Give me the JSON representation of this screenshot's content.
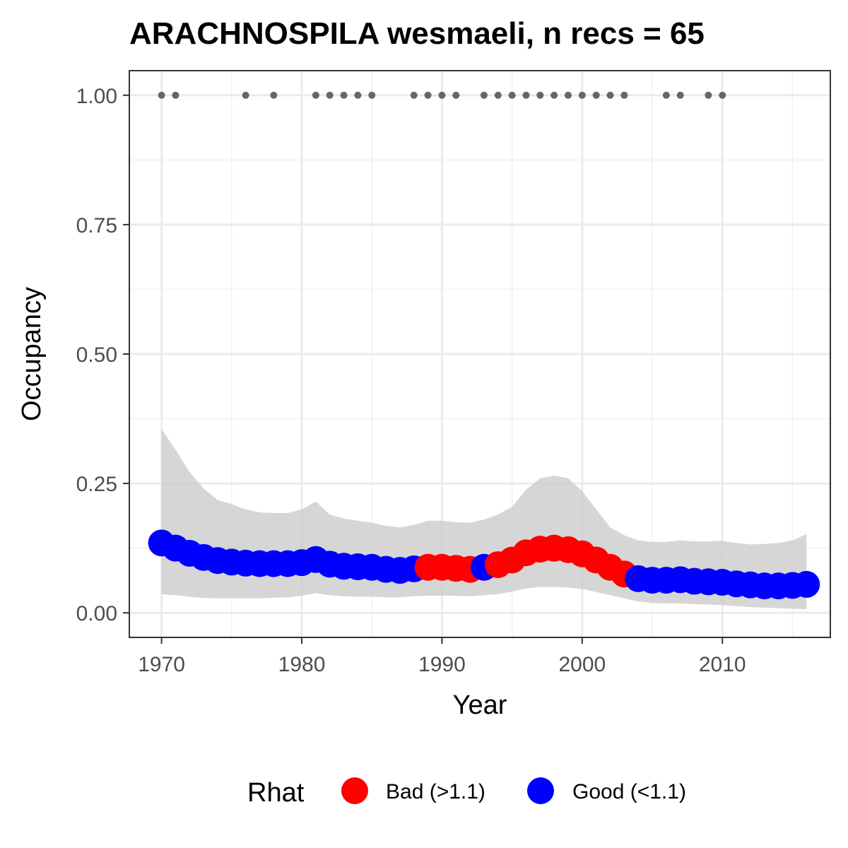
{
  "chart_data": {
    "type": "line",
    "title": "ARACHNOSPILA wesmaeli, n recs = 65",
    "xlabel": "Year",
    "ylabel": "Occupancy",
    "xlim": [
      1967.7,
      2017.7
    ],
    "ylim": [
      -0.0475,
      1.0475
    ],
    "x_ticks": [
      1970,
      1980,
      1990,
      2000,
      2010
    ],
    "x_tick_labels": [
      "1970",
      "1980",
      "1990",
      "2000",
      "2010"
    ],
    "y_ticks": [
      0,
      0.25,
      0.5,
      0.75,
      1.0
    ],
    "y_tick_labels": [
      "0.00",
      "0.25",
      "0.50",
      "0.75",
      "1.00"
    ],
    "grid": true,
    "legend": {
      "title": "Rhat",
      "position": "bottom",
      "entries": [
        {
          "label": "Bad (>1.1)",
          "color": "#ff0000"
        },
        {
          "label": "Good (<1.1)",
          "color": "#0000ff"
        }
      ]
    },
    "colors": {
      "bad": "#ff0000",
      "good": "#0000ff",
      "ribbon": "#cccccc",
      "records": "#666666"
    },
    "years": [
      1970,
      1971,
      1972,
      1973,
      1974,
      1975,
      1976,
      1977,
      1978,
      1979,
      1980,
      1981,
      1982,
      1983,
      1984,
      1985,
      1986,
      1987,
      1988,
      1989,
      1990,
      1991,
      1992,
      1993,
      1994,
      1995,
      1996,
      1997,
      1998,
      1999,
      2000,
      2001,
      2002,
      2003,
      2004,
      2005,
      2006,
      2007,
      2008,
      2009,
      2010,
      2011,
      2012,
      2013,
      2014,
      2015,
      2016
    ],
    "occupancy": [
      0.135,
      0.125,
      0.115,
      0.107,
      0.101,
      0.098,
      0.096,
      0.095,
      0.095,
      0.095,
      0.097,
      0.103,
      0.094,
      0.09,
      0.089,
      0.088,
      0.084,
      0.082,
      0.085,
      0.088,
      0.088,
      0.086,
      0.084,
      0.088,
      0.093,
      0.102,
      0.116,
      0.123,
      0.125,
      0.122,
      0.114,
      0.102,
      0.088,
      0.075,
      0.066,
      0.063,
      0.063,
      0.064,
      0.061,
      0.06,
      0.059,
      0.056,
      0.054,
      0.052,
      0.052,
      0.053,
      0.055
    ],
    "lower": [
      0.036,
      0.034,
      0.031,
      0.029,
      0.028,
      0.028,
      0.028,
      0.028,
      0.029,
      0.03,
      0.033,
      0.038,
      0.034,
      0.032,
      0.031,
      0.031,
      0.03,
      0.03,
      0.032,
      0.033,
      0.033,
      0.033,
      0.032,
      0.034,
      0.036,
      0.041,
      0.047,
      0.05,
      0.05,
      0.049,
      0.046,
      0.04,
      0.034,
      0.028,
      0.022,
      0.019,
      0.018,
      0.018,
      0.017,
      0.016,
      0.015,
      0.013,
      0.011,
      0.01,
      0.009,
      0.008,
      0.007
    ],
    "upper": [
      0.355,
      0.315,
      0.272,
      0.24,
      0.218,
      0.21,
      0.2,
      0.194,
      0.193,
      0.193,
      0.2,
      0.215,
      0.19,
      0.182,
      0.178,
      0.174,
      0.168,
      0.165,
      0.17,
      0.178,
      0.178,
      0.175,
      0.174,
      0.18,
      0.19,
      0.205,
      0.238,
      0.26,
      0.265,
      0.26,
      0.235,
      0.2,
      0.165,
      0.15,
      0.14,
      0.137,
      0.137,
      0.14,
      0.138,
      0.138,
      0.139,
      0.135,
      0.132,
      0.133,
      0.135,
      0.14,
      0.152
    ],
    "rhat_bad": [
      false,
      false,
      false,
      false,
      false,
      false,
      false,
      false,
      false,
      false,
      false,
      false,
      false,
      false,
      false,
      false,
      false,
      false,
      false,
      true,
      true,
      true,
      true,
      false,
      true,
      true,
      true,
      true,
      true,
      true,
      true,
      true,
      true,
      true,
      false,
      false,
      false,
      false,
      false,
      false,
      false,
      false,
      false,
      false,
      false,
      false,
      false
    ],
    "record_years": [
      1970,
      1971,
      1976,
      1978,
      1981,
      1982,
      1983,
      1984,
      1985,
      1988,
      1989,
      1990,
      1991,
      1993,
      1994,
      1995,
      1996,
      1997,
      1998,
      1999,
      2000,
      2001,
      2002,
      2003,
      2006,
      2007,
      2009,
      2010
    ],
    "record_value": 1.0
  }
}
